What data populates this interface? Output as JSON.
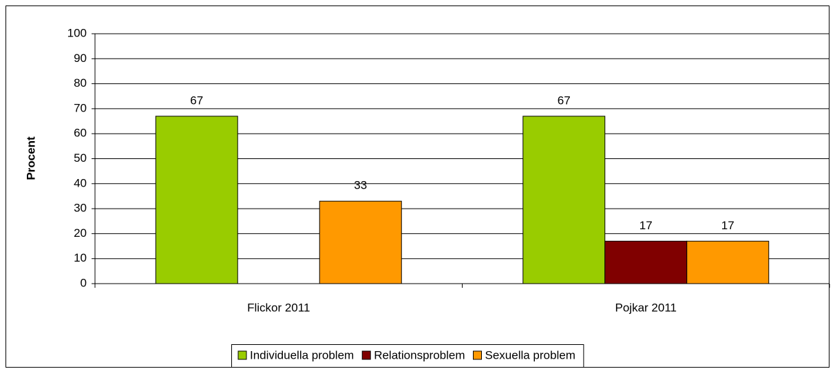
{
  "chart_data": {
    "type": "bar",
    "y_label": "Procent",
    "categories": [
      "Flickor 2011",
      "Pojkar 2011"
    ],
    "series": [
      {
        "name": "Individuella problem",
        "color": "#99cc00",
        "values": [
          67,
          67
        ]
      },
      {
        "name": "Relationsproblem",
        "color": "#800000",
        "values": [
          null,
          17
        ]
      },
      {
        "name": "Sexuella problem",
        "color": "#ff9900",
        "values": [
          33,
          17
        ]
      }
    ],
    "ylim": [
      0,
      100
    ],
    "yticks": [
      0,
      10,
      20,
      30,
      40,
      50,
      60,
      70,
      80,
      90,
      100
    ],
    "grid": true,
    "legend": "bottom"
  }
}
